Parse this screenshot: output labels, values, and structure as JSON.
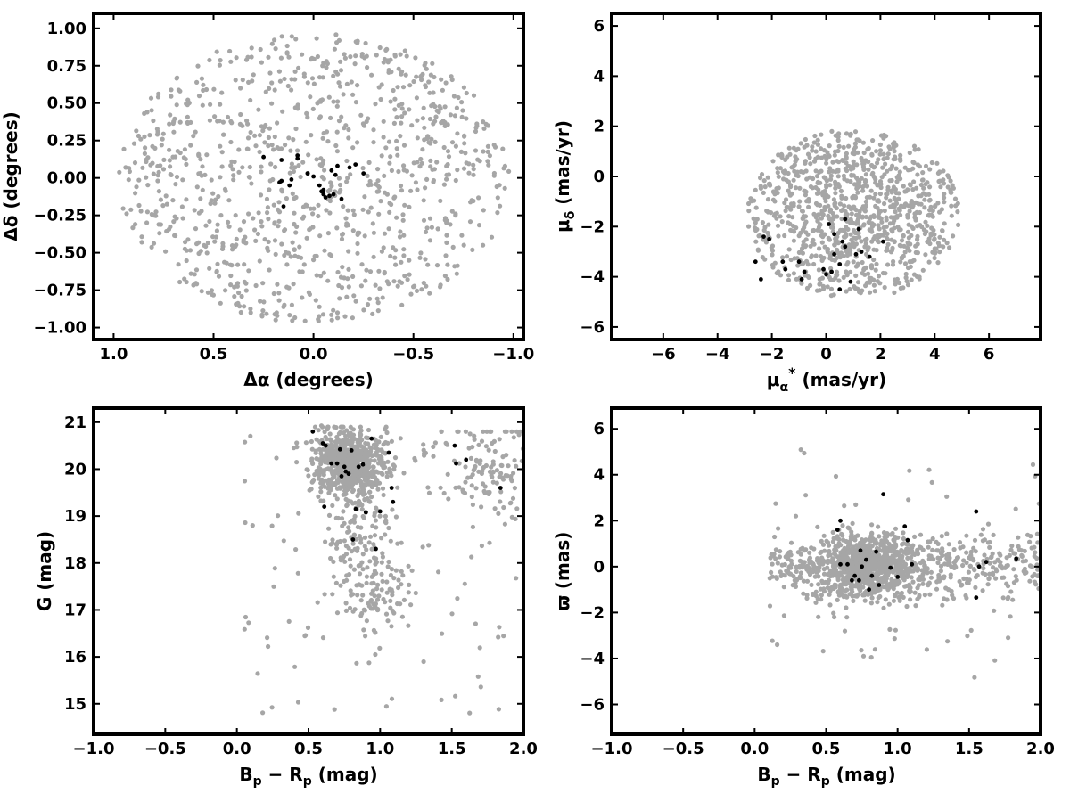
{
  "colors": {
    "field": "#a6a6a6",
    "member": "#000000",
    "frame": "#000000"
  },
  "chart_data": [
    {
      "type": "scatter",
      "id": "sky",
      "xlabel": "Δα (degrees)",
      "ylabel": "Δδ (degrees)",
      "xlim": [
        1.1,
        -1.05
      ],
      "ylim": [
        -1.08,
        1.1
      ],
      "xticks": [
        1.0,
        0.5,
        0.0,
        -0.5,
        -1.0
      ],
      "xtick_labels": [
        "1.0",
        "0.5",
        "0.0",
        "−0.5",
        "−1.0"
      ],
      "yticks": [
        -1.0,
        -0.75,
        -0.5,
        -0.25,
        0.0,
        0.25,
        0.5,
        0.75,
        1.0
      ],
      "ytick_labels": [
        "−1.00",
        "−0.75",
        "−0.50",
        "−0.25",
        "0.00",
        "0.25",
        "0.50",
        "0.75",
        "1.00"
      ],
      "grid": false,
      "series": [
        {
          "role": "field",
          "distribution": "uniform-disk",
          "count": 1000,
          "center": [
            0.0,
            0.0
          ],
          "radius": [
            0.98,
            0.97
          ]
        },
        {
          "role": "member",
          "points": [
            [
              0.25,
              0.14
            ],
            [
              0.16,
              0.12
            ],
            [
              0.08,
              0.15
            ],
            [
              0.08,
              0.13
            ],
            [
              0.16,
              -0.02
            ],
            [
              0.17,
              -0.03
            ],
            [
              0.11,
              -0.01
            ],
            [
              0.12,
              -0.05
            ],
            [
              0.15,
              -0.19
            ],
            [
              0.03,
              0.03
            ],
            [
              0.0,
              0.01
            ],
            [
              -0.03,
              -0.05
            ],
            [
              -0.04,
              -0.09
            ],
            [
              -0.05,
              -0.11
            ],
            [
              -0.06,
              -0.13
            ],
            [
              -0.08,
              -0.12
            ],
            [
              -0.09,
              0.05
            ],
            [
              -0.11,
              0.02
            ],
            [
              -0.12,
              0.08
            ],
            [
              -0.14,
              -0.14
            ],
            [
              -0.18,
              0.07
            ],
            [
              -0.21,
              0.09
            ],
            [
              -0.25,
              0.03
            ],
            [
              -0.1,
              -0.11
            ],
            [
              -0.05,
              -0.08
            ]
          ]
        }
      ]
    },
    {
      "type": "scatter",
      "id": "proper-motion",
      "xlabel": "μα* (mas/yr)",
      "ylabel": "μδ (mas/yr)",
      "xlim": [
        -7.9,
        7.9
      ],
      "ylim": [
        -6.5,
        6.5
      ],
      "xticks": [
        -6,
        -4,
        -2,
        0,
        2,
        4,
        6
      ],
      "xtick_labels": [
        "−6",
        "−4",
        "−2",
        "0",
        "2",
        "4",
        "6"
      ],
      "yticks": [
        -6,
        -4,
        -2,
        0,
        2,
        4,
        6
      ],
      "ytick_labels": [
        "−6",
        "−4",
        "−2",
        "0",
        "2",
        "4",
        "6"
      ],
      "grid": false,
      "series": [
        {
          "role": "field",
          "distribution": "clipped-ellipse",
          "count": 1000,
          "center": [
            1.0,
            -1.5
          ],
          "radius": [
            3.9,
            3.4
          ],
          "ymin": -4.9
        },
        {
          "role": "member",
          "points": [
            [
              -2.6,
              -3.4
            ],
            [
              -2.4,
              -4.1
            ],
            [
              -2.3,
              -2.4
            ],
            [
              -2.1,
              -2.5
            ],
            [
              -1.6,
              -3.4
            ],
            [
              -1.5,
              -3.7
            ],
            [
              -1.0,
              -3.4
            ],
            [
              -0.9,
              -4.1
            ],
            [
              -0.8,
              -3.8
            ],
            [
              -0.1,
              -3.7
            ],
            [
              0.0,
              -3.9
            ],
            [
              0.1,
              -1.9
            ],
            [
              0.2,
              -3.8
            ],
            [
              0.3,
              -2.3
            ],
            [
              0.3,
              -3.1
            ],
            [
              0.5,
              -3.5
            ],
            [
              0.5,
              -4.5
            ],
            [
              0.6,
              -2.6
            ],
            [
              0.7,
              -1.7
            ],
            [
              0.7,
              -2.8
            ],
            [
              0.9,
              -4.2
            ],
            [
              1.1,
              -3.1
            ],
            [
              1.2,
              -2.1
            ],
            [
              1.3,
              -3.0
            ],
            [
              1.6,
              -3.2
            ],
            [
              2.1,
              -2.6
            ]
          ]
        }
      ]
    },
    {
      "type": "scatter",
      "id": "cmd-g",
      "xlabel": "Bp − Rp (mag)",
      "ylabel": "G (mag)",
      "xlim": [
        -1.0,
        2.0
      ],
      "ylim": [
        14.35,
        21.3
      ],
      "xticks": [
        -1.0,
        -0.5,
        0.0,
        0.5,
        1.0,
        1.5,
        2.0
      ],
      "xtick_labels": [
        "−1.0",
        "−0.5",
        "0.0",
        "0.5",
        "1.0",
        "1.5",
        "2.0"
      ],
      "yticks": [
        15,
        16,
        17,
        18,
        19,
        20,
        21
      ],
      "ytick_labels": [
        "15",
        "16",
        "17",
        "18",
        "19",
        "20",
        "21"
      ],
      "grid": false,
      "series": [
        {
          "role": "field",
          "distribution": "cmd-cloud",
          "count": 1100,
          "core": [
            0.78,
            20.15
          ],
          "tail_to": [
            1.0,
            17.0
          ],
          "red_group": [
            1.75,
            20.0
          ]
        },
        {
          "role": "member",
          "points": [
            [
              0.53,
              20.8
            ],
            [
              0.6,
              20.55
            ],
            [
              0.62,
              20.5
            ],
            [
              0.66,
              20.12
            ],
            [
              0.7,
              20.12
            ],
            [
              0.72,
              20.42
            ],
            [
              0.73,
              19.85
            ],
            [
              0.75,
              20.05
            ],
            [
              0.76,
              19.95
            ],
            [
              0.78,
              19.9
            ],
            [
              0.8,
              20.4
            ],
            [
              0.83,
              19.15
            ],
            [
              0.85,
              20.05
            ],
            [
              0.88,
              20.1
            ],
            [
              0.9,
              19.08
            ],
            [
              0.94,
              20.65
            ],
            [
              0.97,
              18.3
            ],
            [
              1.0,
              19.1
            ],
            [
              1.06,
              20.35
            ],
            [
              1.08,
              19.6
            ],
            [
              1.09,
              19.3
            ],
            [
              1.52,
              20.5
            ],
            [
              1.53,
              20.12
            ],
            [
              1.6,
              20.2
            ],
            [
              1.84,
              19.6
            ],
            [
              0.81,
              18.5
            ],
            [
              0.61,
              19.2
            ]
          ]
        }
      ]
    },
    {
      "type": "scatter",
      "id": "cmd-parallax",
      "xlabel": "Bp − Rp (mag)",
      "ylabel": "ϖ (mas)",
      "xlim": [
        -1.0,
        2.0
      ],
      "ylim": [
        -7.3,
        6.9
      ],
      "xticks": [
        -1.0,
        -0.5,
        0.0,
        0.5,
        1.0,
        1.5,
        2.0
      ],
      "xtick_labels": [
        "−1.0",
        "−0.5",
        "0.0",
        "0.5",
        "1.0",
        "1.5",
        "2.0"
      ],
      "yticks": [
        -6,
        -4,
        -2,
        0,
        2,
        4,
        6
      ],
      "ytick_labels": [
        "−6",
        "−4",
        "−2",
        "0",
        "2",
        "4",
        "6"
      ],
      "grid": false,
      "series": [
        {
          "role": "field",
          "distribution": "parallax-band",
          "count": 1300,
          "core": [
            0.8,
            0.0
          ]
        },
        {
          "role": "member",
          "points": [
            [
              0.58,
              1.6
            ],
            [
              0.6,
              2.0
            ],
            [
              0.6,
              0.1
            ],
            [
              0.65,
              0.1
            ],
            [
              0.68,
              -0.6
            ],
            [
              0.7,
              -0.4
            ],
            [
              0.73,
              -0.6
            ],
            [
              0.74,
              0.7
            ],
            [
              0.75,
              0.0
            ],
            [
              0.78,
              0.3
            ],
            [
              0.8,
              -1.0
            ],
            [
              0.82,
              -0.4
            ],
            [
              0.85,
              0.65
            ],
            [
              0.87,
              -0.8
            ],
            [
              0.9,
              3.15
            ],
            [
              0.95,
              -0.05
            ],
            [
              1.0,
              -0.45
            ],
            [
              1.05,
              1.75
            ],
            [
              1.07,
              1.15
            ],
            [
              1.1,
              0.1
            ],
            [
              1.55,
              2.4
            ],
            [
              1.55,
              -1.35
            ],
            [
              1.62,
              0.2
            ],
            [
              1.83,
              0.35
            ],
            [
              1.57,
              0.0
            ]
          ]
        }
      ]
    }
  ]
}
